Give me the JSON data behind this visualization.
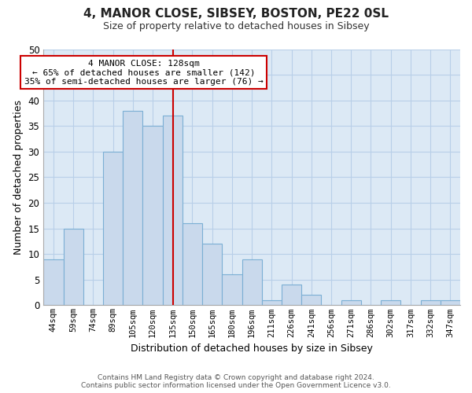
{
  "title": "4, MANOR CLOSE, SIBSEY, BOSTON, PE22 0SL",
  "subtitle": "Size of property relative to detached houses in Sibsey",
  "xlabel": "Distribution of detached houses by size in Sibsey",
  "ylabel": "Number of detached properties",
  "bar_labels": [
    "44sqm",
    "59sqm",
    "74sqm",
    "89sqm",
    "105sqm",
    "120sqm",
    "135sqm",
    "150sqm",
    "165sqm",
    "180sqm",
    "196sqm",
    "211sqm",
    "226sqm",
    "241sqm",
    "256sqm",
    "271sqm",
    "286sqm",
    "302sqm",
    "317sqm",
    "332sqm",
    "347sqm"
  ],
  "bar_values": [
    9,
    15,
    0,
    30,
    38,
    35,
    37,
    16,
    12,
    6,
    9,
    1,
    4,
    2,
    0,
    1,
    0,
    1,
    0,
    1,
    1
  ],
  "bar_color": "#c9d9ec",
  "bar_edge_color": "#7bafd4",
  "marker_color": "#cc0000",
  "ylim": [
    0,
    50
  ],
  "yticks": [
    0,
    5,
    10,
    15,
    20,
    25,
    30,
    35,
    40,
    45,
    50
  ],
  "annotation_title": "4 MANOR CLOSE: 128sqm",
  "annotation_line1": "← 65% of detached houses are smaller (142)",
  "annotation_line2": "35% of semi-detached houses are larger (76) →",
  "annotation_box_color": "#ffffff",
  "annotation_box_edge": "#cc0000",
  "footer_line1": "Contains HM Land Registry data © Crown copyright and database right 2024.",
  "footer_line2": "Contains public sector information licensed under the Open Government Licence v3.0.",
  "background_color": "#ffffff",
  "plot_bg_color": "#dce9f5",
  "grid_color": "#b8cfe8"
}
